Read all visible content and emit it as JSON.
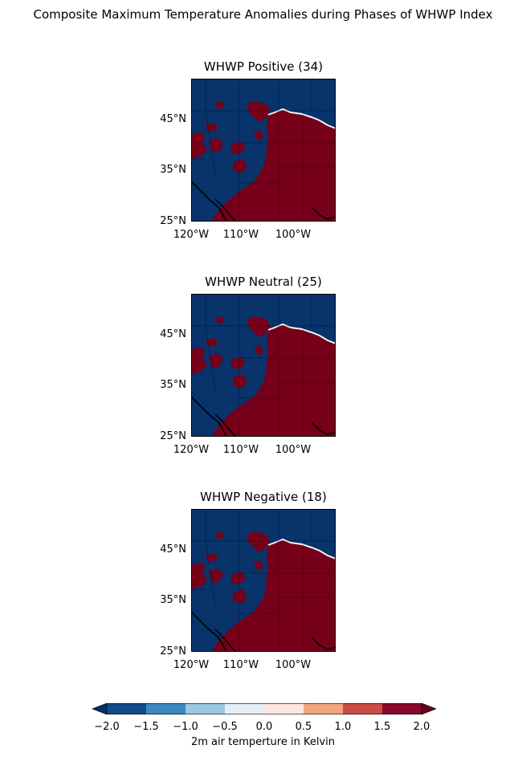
{
  "figure": {
    "title": "Composite Maximum Temperature Anomalies during Phases of WHWP Index"
  },
  "panels": [
    {
      "title": "WHWP Positive (34)"
    },
    {
      "title": "WHWP Neutral (25)"
    },
    {
      "title": "WHWP Negative (18)"
    }
  ],
  "axes": {
    "lat_ticks": [
      "25°N",
      "35°N",
      "45°N"
    ],
    "lon_ticks": [
      "120°W",
      "110°W",
      "100°W"
    ]
  },
  "colorbar": {
    "label": "2m air temperture in Kelvin",
    "ticks": [
      "−2.0",
      "−1.5",
      "−1.0",
      "−0.5",
      "0.0",
      "0.5",
      "1.0",
      "1.5",
      "2.0"
    ],
    "colors": [
      "#134b86",
      "#3b88c0",
      "#9ac8e0",
      "#e3eef5",
      "#fde7dc",
      "#f3a481",
      "#cb4c45",
      "#860b28"
    ],
    "under_color": "#053061",
    "over_color": "#67001f"
  },
  "colors": {
    "cold": "#08336b",
    "warm": "#760019",
    "border": "#000000"
  }
}
